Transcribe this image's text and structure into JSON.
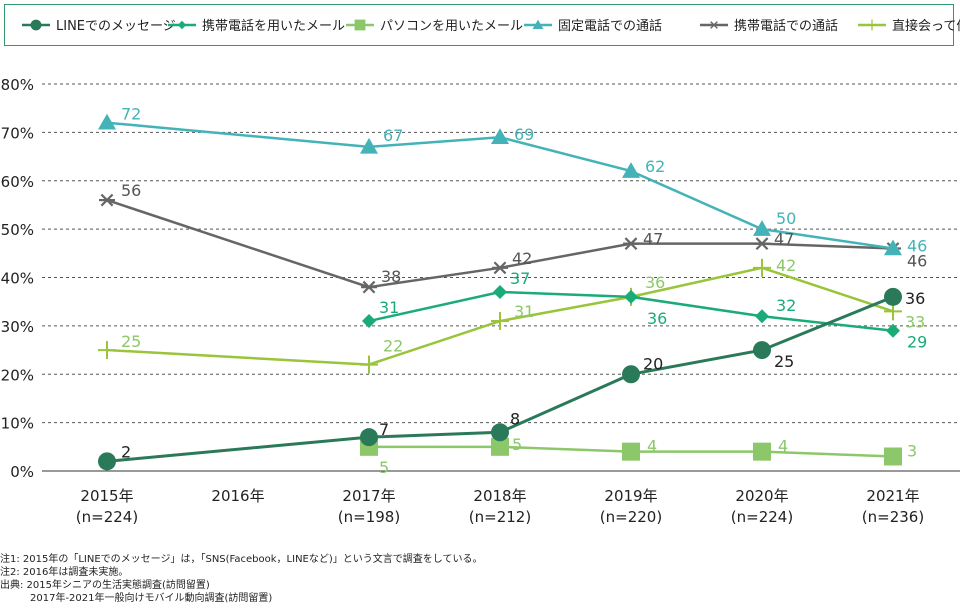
{
  "colors": {
    "LINE": "#2a7a5a",
    "mobile_mail": "#1aab78",
    "pc_mail": "#8cc86a",
    "landline": "#44b3b8",
    "mobile_call": "#666666",
    "face": "#9ac43a",
    "legend_border": "#2e9a6b",
    "grid": "#555555"
  },
  "chart_data": {
    "type": "line",
    "categories": [
      "2015年",
      "2016年",
      "2017年",
      "2018年",
      "2019年",
      "2020年",
      "2021年"
    ],
    "category_sublabels": [
      "(n=224)",
      "",
      "(n=198)",
      "(n=212)",
      "(n=220)",
      "(n=224)",
      "(n=236)"
    ],
    "ylim": [
      0,
      80
    ],
    "yticks": [
      "0%",
      "10%",
      "20%",
      "30%",
      "40%",
      "50%",
      "60%",
      "70%",
      "80%"
    ],
    "grid": "horizontal dashed",
    "legend_position": "top",
    "series": [
      {
        "name": "LINEでのメッセージ",
        "key": "LINE",
        "marker": "circle",
        "values": [
          2,
          null,
          7,
          8,
          20,
          25,
          36
        ]
      },
      {
        "name": "携帯電話を用いたメール",
        "key": "mobile_mail",
        "marker": "diamond",
        "values": [
          null,
          null,
          31,
          37,
          36,
          32,
          29
        ]
      },
      {
        "name": "パソコンを用いたメール",
        "key": "pc_mail",
        "marker": "square",
        "values": [
          null,
          null,
          5,
          5,
          4,
          4,
          3
        ]
      },
      {
        "name": "固定電話での通話",
        "key": "landline",
        "marker": "triangle",
        "values": [
          72,
          null,
          67,
          69,
          62,
          50,
          46
        ]
      },
      {
        "name": "携帯電話での通話",
        "key": "mobile_call",
        "marker": "asterisk",
        "values": [
          56,
          null,
          38,
          42,
          47,
          47,
          46
        ]
      },
      {
        "name": "直接会って伝える",
        "key": "face",
        "marker": "plus",
        "values": [
          25,
          null,
          22,
          31,
          36,
          42,
          33
        ]
      }
    ]
  },
  "notes": [
    "注1: 2015年の「LINEでのメッセージ」は，「SNS(Facebook，LINEなど)」という文言で調査をしている。",
    "注2: 2016年は調査未実施。",
    "出典: 2015年シニアの生活実態調査(訪問留置)",
    "　　　2017年-2021年一般向けモバイル動向調査(訪問留置)"
  ]
}
